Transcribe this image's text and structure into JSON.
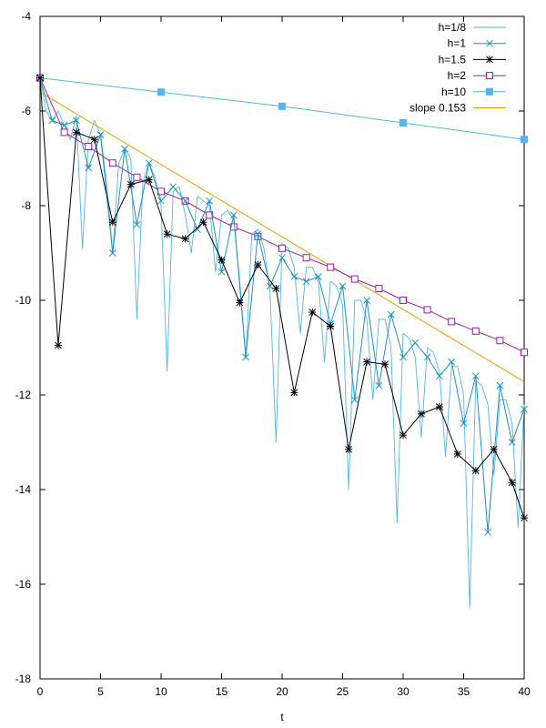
{
  "chart_data": {
    "type": "line",
    "title": "",
    "xlabel": "t",
    "ylabel": "",
    "xlim": [
      0,
      40
    ],
    "ylim": [
      -18,
      -4
    ],
    "xticks": [
      0,
      5,
      10,
      15,
      20,
      25,
      30,
      35,
      40
    ],
    "yticks": [
      -4,
      -6,
      -8,
      -10,
      -12,
      -14,
      -16,
      -18
    ],
    "grid": false,
    "legend_position": "top-right",
    "series": [
      {
        "name": "h=1/8",
        "color": "#56b4e9",
        "marker": "none",
        "x": [
          0,
          0.5,
          1,
          1.5,
          2,
          2.5,
          3,
          3.5,
          4,
          4.5,
          5,
          5.5,
          6,
          6.5,
          7,
          7.5,
          8,
          8.5,
          9,
          9.5,
          10,
          10.5,
          11,
          11.5,
          12,
          12.5,
          13,
          13.5,
          14,
          14.5,
          15,
          15.5,
          16,
          16.5,
          17,
          17.5,
          18,
          18.5,
          19,
          19.5,
          20,
          20.5,
          21,
          21.5,
          22,
          22.5,
          23,
          23.5,
          24,
          24.5,
          25,
          25.5,
          26,
          26.5,
          27,
          27.5,
          28,
          28.5,
          29,
          29.5,
          30,
          30.5,
          31,
          31.5,
          32,
          32.5,
          33,
          33.5,
          34,
          34.5,
          35,
          35.5,
          36,
          36.5,
          37,
          37.5,
          38,
          38.5,
          39,
          39.5,
          40
        ],
        "y": [
          -5.3,
          -6.0,
          -6.2,
          -6.0,
          -6.3,
          -6.6,
          -6.1,
          -8.9,
          -6.6,
          -6.2,
          -6.5,
          -7.5,
          -9.0,
          -7.1,
          -6.8,
          -7.0,
          -10.4,
          -7.5,
          -7.1,
          -7.4,
          -8.0,
          -11.5,
          -7.7,
          -7.6,
          -8.2,
          -9.0,
          -7.8,
          -7.9,
          -8.0,
          -9.4,
          -8.2,
          -8.1,
          -8.3,
          -9.6,
          -11.2,
          -8.6,
          -8.5,
          -8.9,
          -9.8,
          -13.0,
          -8.8,
          -8.9,
          -9.3,
          -10.7,
          -9.3,
          -9.3,
          -9.6,
          -11.3,
          -9.6,
          -9.7,
          -10.1,
          -14.0,
          -10.0,
          -10.0,
          -10.4,
          -12.1,
          -10.4,
          -10.4,
          -11.0,
          -14.7,
          -10.7,
          -10.8,
          -11.2,
          -12.9,
          -11.0,
          -11.1,
          -11.5,
          -13.3,
          -11.4,
          -11.4,
          -12.0,
          -16.5,
          -11.7,
          -11.8,
          -12.2,
          -13.7,
          -12.1,
          -12.1,
          -12.6,
          -14.8,
          -12.2
        ]
      },
      {
        "name": "h=1",
        "color": "#1f8fbf",
        "marker": "x",
        "x": [
          0,
          1,
          2,
          3,
          4,
          5,
          6,
          7,
          8,
          9,
          10,
          11,
          12,
          13,
          14,
          15,
          16,
          17,
          18,
          19,
          20,
          21,
          22,
          23,
          24,
          25,
          26,
          27,
          28,
          29,
          30,
          31,
          32,
          33,
          34,
          35,
          36,
          37,
          38,
          39,
          40
        ],
        "y": [
          -5.3,
          -6.2,
          -6.3,
          -6.2,
          -7.2,
          -6.5,
          -9.0,
          -6.8,
          -8.4,
          -7.1,
          -7.9,
          -7.6,
          -7.9,
          -8.5,
          -7.9,
          -9.4,
          -8.2,
          -11.2,
          -8.6,
          -9.7,
          -9.1,
          -9.5,
          -9.6,
          -9.5,
          -10.5,
          -9.7,
          -12.1,
          -10.0,
          -11.8,
          -10.3,
          -11.2,
          -10.9,
          -11.2,
          -11.6,
          -11.3,
          -12.6,
          -11.6,
          -14.9,
          -11.8,
          -13.0,
          -12.3
        ]
      },
      {
        "name": "h=1.5",
        "color": "#000000",
        "marker": "star",
        "x": [
          0,
          1.5,
          3,
          4.5,
          6,
          7.5,
          9,
          10.5,
          12,
          13.5,
          15,
          16.5,
          18,
          19.5,
          21,
          22.5,
          24,
          25.5,
          27,
          28.5,
          30,
          31.5,
          33,
          34.5,
          36,
          37.5,
          39,
          40
        ],
        "y": [
          -5.3,
          -10.95,
          -6.45,
          -6.6,
          -8.35,
          -7.55,
          -7.45,
          -8.6,
          -8.7,
          -8.35,
          -9.15,
          -10.05,
          -9.25,
          -9.75,
          -11.95,
          -10.25,
          -10.55,
          -13.15,
          -11.3,
          -11.35,
          -12.85,
          -12.4,
          -12.25,
          -13.25,
          -13.6,
          -13.15,
          -13.85,
          -14.6
        ]
      },
      {
        "name": "h=2",
        "color": "#9b1fa8",
        "marker": "square-open",
        "x": [
          0,
          2,
          4,
          6,
          8,
          10,
          12,
          14,
          16,
          18,
          20,
          22,
          24,
          26,
          28,
          30,
          32,
          34,
          36,
          38,
          40
        ],
        "y": [
          -5.3,
          -6.45,
          -6.75,
          -7.1,
          -7.4,
          -7.7,
          -7.9,
          -8.2,
          -8.45,
          -8.65,
          -8.9,
          -9.1,
          -9.3,
          -9.55,
          -9.75,
          -10.0,
          -10.2,
          -10.45,
          -10.65,
          -10.85,
          -11.1
        ]
      },
      {
        "name": "h=10",
        "color": "#56b4e9",
        "marker": "square-filled",
        "x": [
          0,
          10,
          20,
          30,
          40
        ],
        "y": [
          -5.3,
          -5.6,
          -5.9,
          -6.25,
          -6.6
        ]
      },
      {
        "name": "slope 0.153",
        "color": "#e69f00",
        "marker": "none",
        "x": [
          0,
          40
        ],
        "y": [
          -5.6,
          -11.72
        ]
      }
    ]
  }
}
